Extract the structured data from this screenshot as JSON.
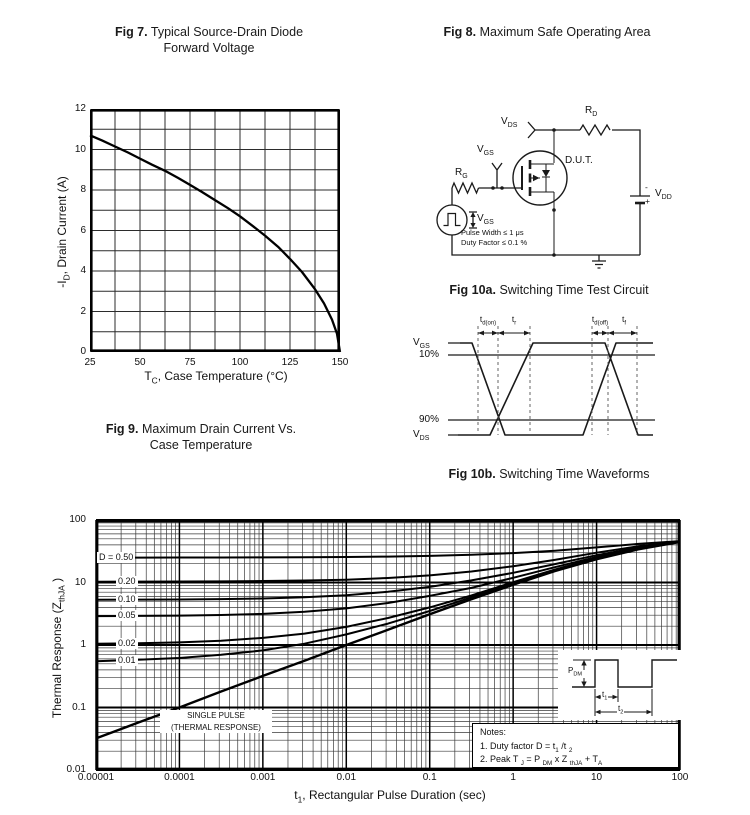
{
  "captions": {
    "fig7": {
      "bold": "Fig 7.",
      "text": "  Typical Source-Drain Diode",
      "line2": "Forward Voltage"
    },
    "fig8": {
      "bold": "Fig 8.",
      "text": "  Maximum Safe Operating Area"
    },
    "fig9": {
      "bold": "Fig 9.",
      "text": "  Maximum Drain Current Vs.",
      "line2": "Case Temperature"
    },
    "fig10a": {
      "bold": "Fig 10a.",
      "text": "  Switching Time Test Circuit"
    },
    "fig10b": {
      "bold": "Fig 10b.",
      "text": "  Switching Time Waveforms"
    }
  },
  "labels": {
    "fig9_ylabel": [
      [
        "t",
        "-I"
      ],
      [
        "sub",
        "D"
      ],
      [
        "t",
        ", Drain Current (A)"
      ]
    ],
    "fig9_xlabel": [
      [
        "t",
        "T"
      ],
      [
        "sub",
        "C"
      ],
      [
        "t",
        ", Case Temperature    (°C)"
      ]
    ],
    "thermal_ylabel": [
      [
        "t",
        "Thermal Response (Z"
      ],
      [
        "sub",
        "thJA"
      ],
      [
        "t",
        " )"
      ]
    ],
    "thermal_xlabel": [
      [
        "t",
        "t"
      ],
      [
        "sub",
        "1"
      ],
      [
        "t",
        ", Rectangular Pulse Duration (sec)"
      ]
    ],
    "circuit": {
      "vds": [
        [
          "t",
          "V"
        ],
        [
          "sub",
          "DS"
        ]
      ],
      "rd": [
        [
          "t",
          "R"
        ],
        [
          "sub",
          "D"
        ]
      ],
      "vgs_probe": [
        [
          "t",
          "V"
        ],
        [
          "sub",
          "GS"
        ]
      ],
      "rg": [
        [
          "t",
          "R"
        ],
        [
          "sub",
          "G"
        ]
      ],
      "dut": [
        [
          "t",
          "D.U.T."
        ]
      ],
      "vgs_source": [
        [
          "t",
          "V"
        ],
        [
          "sub",
          "GS"
        ]
      ],
      "vdd": [
        [
          "t",
          "V"
        ],
        [
          "sub",
          "DD"
        ]
      ],
      "battery_minus": "-",
      "battery_plus": "+",
      "pulse_width": "Pulse Width ≤ 1 μs",
      "duty_factor": "Duty Factor ≤ 0.1 %"
    },
    "waveform": {
      "vgs": [
        [
          "t",
          "V"
        ],
        [
          "sub",
          "GS"
        ]
      ],
      "pct10": "10%",
      "pct90": "90%",
      "vds": [
        [
          "t",
          "V"
        ],
        [
          "sub",
          "DS"
        ]
      ],
      "td_on": [
        [
          "t",
          "t"
        ],
        [
          "sub",
          "d(on)"
        ]
      ],
      "tr": [
        [
          "t",
          "t"
        ],
        [
          "sub",
          "r"
        ]
      ],
      "td_off": [
        [
          "t",
          "t"
        ],
        [
          "sub",
          "d(off)"
        ]
      ],
      "tf": [
        [
          "t",
          "t"
        ],
        [
          "sub",
          "f"
        ]
      ]
    },
    "thermal": {
      "single_pulse_1": "SINGLE PULSE",
      "single_pulse_2": "(THERMAL RESPONSE)",
      "notes_title": "Notes:",
      "note1": [
        [
          "t",
          "1. Duty factor D =   t"
        ],
        [
          "sub",
          "1"
        ],
        [
          "t",
          " /t "
        ],
        [
          "sub",
          "2"
        ]
      ],
      "note2": [
        [
          "t",
          "2. Peak T "
        ],
        [
          "sub",
          "J"
        ],
        [
          "t",
          " = P "
        ],
        [
          "sub",
          "DM"
        ],
        [
          "t",
          " x  Z "
        ],
        [
          "sub",
          "thJA"
        ],
        [
          "t",
          "  + T"
        ],
        [
          "sub",
          "A"
        ]
      ],
      "pdm": [
        [
          "t",
          "P"
        ],
        [
          "sub",
          "DM"
        ]
      ],
      "t1": [
        [
          "t",
          "t"
        ],
        [
          "sub",
          "1"
        ]
      ],
      "t2": [
        [
          "t",
          "t"
        ],
        [
          "sub",
          "2"
        ]
      ]
    }
  },
  "chart_data": [
    {
      "type": "line",
      "title": "Fig 9. Maximum Drain Current Vs. Case Temperature",
      "xlabel": "TC, Case Temperature (°C)",
      "ylabel": "-ID, Drain Current (A)",
      "xlim": [
        25,
        150
      ],
      "ylim": [
        0,
        12
      ],
      "xticks": [
        25,
        50,
        75,
        100,
        125,
        150
      ],
      "yticks": [
        0,
        2,
        4,
        6,
        8,
        10,
        12
      ],
      "x_minor_step": 12.5,
      "y_minor_step": 1,
      "grid": "on",
      "points": [
        [
          25,
          10.7
        ],
        [
          31,
          10.45
        ],
        [
          37.5,
          10.15
        ],
        [
          44,
          9.85
        ],
        [
          50,
          9.55
        ],
        [
          56,
          9.25
        ],
        [
          62.5,
          8.95
        ],
        [
          69,
          8.6
        ],
        [
          75,
          8.25
        ],
        [
          81,
          7.9
        ],
        [
          87.5,
          7.5
        ],
        [
          94,
          7.1
        ],
        [
          100,
          6.7
        ],
        [
          106,
          6.25
        ],
        [
          112.5,
          5.75
        ],
        [
          119,
          5.2
        ],
        [
          125,
          4.6
        ],
        [
          131,
          3.95
        ],
        [
          137.5,
          3.1
        ],
        [
          142,
          2.4
        ],
        [
          146,
          1.6
        ],
        [
          148.5,
          0.9
        ],
        [
          150,
          0
        ]
      ]
    },
    {
      "type": "line",
      "xscale": "log",
      "yscale": "log",
      "title": "",
      "xlabel": "t1, Rectangular Pulse Duration (sec)",
      "ylabel": "Thermal Response (ZthJA)",
      "xlim": [
        1e-05,
        100
      ],
      "ylim": [
        0.01,
        100
      ],
      "xticks": [
        "0.00001",
        "0.0001",
        "0.001",
        "0.01",
        "0.1",
        "1",
        "10",
        "100"
      ],
      "yticks": [
        "100",
        "10",
        "1",
        "0.1",
        "0.01"
      ],
      "grid": "on",
      "x": [
        1e-05,
        3.16e-05,
        0.0001,
        0.000316,
        0.001,
        0.00316,
        0.01,
        0.0316,
        0.1,
        0.316,
        1,
        3.16,
        10,
        31.6,
        100
      ],
      "series": [
        {
          "name": "D = 0.50",
          "label": "D = 0.50",
          "values": [
            25,
            25.05,
            25.1,
            25.15,
            25.25,
            25.4,
            25.6,
            26,
            26.6,
            27.7,
            29.5,
            32.3,
            36.5,
            41.5,
            46
          ]
        },
        {
          "name": "D = 0.20",
          "label": "0.20",
          "values": [
            10.3,
            10.32,
            10.36,
            10.42,
            10.55,
            10.75,
            11.1,
            11.8,
            13,
            15,
            18.2,
            23,
            30,
            38,
            45.5
          ]
        },
        {
          "name": "D = 0.10",
          "label": "0.10",
          "values": [
            5.3,
            5.32,
            5.35,
            5.42,
            5.55,
            5.8,
            6.25,
            7.1,
            8.5,
            10.8,
            14.3,
            19.7,
            27.3,
            36.5,
            45.2
          ]
        },
        {
          "name": "D = 0.05",
          "label": "0.05",
          "values": [
            2.9,
            2.92,
            2.95,
            3.02,
            3.15,
            3.4,
            3.85,
            4.7,
            6.1,
            8.2,
            11.9,
            17.6,
            25.6,
            35.5,
            45
          ]
        },
        {
          "name": "D = 0.02",
          "label": "0.02",
          "values": [
            1.05,
            1.07,
            1.1,
            1.17,
            1.3,
            1.52,
            1.95,
            2.7,
            4,
            6.2,
            10.1,
            16.1,
            24.6,
            34.8,
            44.8
          ]
        },
        {
          "name": "D = 0.01",
          "label": "0.01",
          "values": [
            0.55,
            0.58,
            0.62,
            0.7,
            0.82,
            1.05,
            1.48,
            2.2,
            3.5,
            5.8,
            9.7,
            15.7,
            24.2,
            34.5,
            44.7
          ]
        },
        {
          "name": "SINGLE PULSE (THERMAL RESPONSE)",
          "label": null,
          "values": [
            0.032,
            0.057,
            0.1,
            0.18,
            0.32,
            0.56,
            1,
            1.75,
            3.1,
            5.4,
            9.2,
            15.2,
            23.6,
            34,
            44.5
          ]
        }
      ],
      "notes": [
        "Notes:",
        "1. Duty factor D = t1/t2",
        "2. Peak TJ = PDM x ZthJA + TA"
      ],
      "annotations": [
        "SINGLE PULSE (THERMAL RESPONSE)",
        "PDM",
        "t1",
        "t2"
      ],
      "legend_position": "curve-labels-left"
    }
  ]
}
